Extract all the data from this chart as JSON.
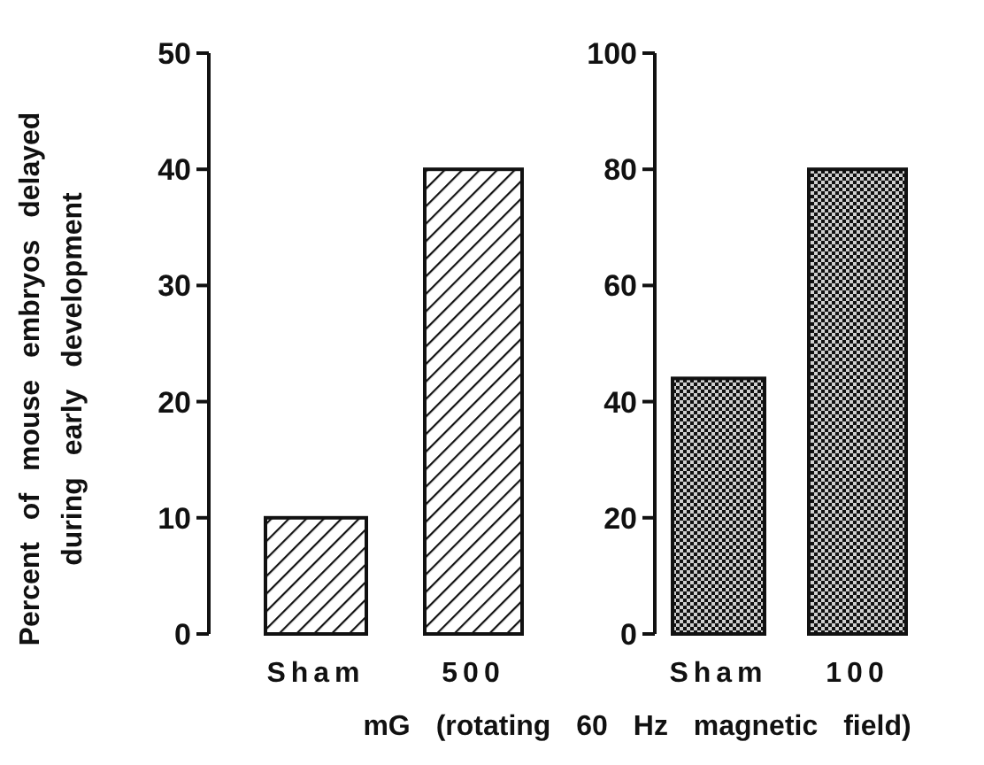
{
  "chart_data": [
    {
      "type": "bar",
      "categories": [
        "Sham",
        "500"
      ],
      "values": [
        10,
        40
      ],
      "color": "#111111",
      "ylim": [
        0,
        50
      ],
      "yticks": [
        0,
        10,
        20,
        30,
        40,
        50
      ],
      "ylabel": "Percent of mouse embryos delayed\nduring early development",
      "xlabel": "mG (rotating 60 Hz magnetic field)",
      "grid": false
    },
    {
      "type": "bar",
      "categories": [
        "Sham",
        "100"
      ],
      "values": [
        44,
        80
      ],
      "color": "#111111",
      "ylim": [
        0,
        100
      ],
      "yticks": [
        0,
        20,
        40,
        60,
        80,
        100
      ],
      "grid": false
    }
  ]
}
